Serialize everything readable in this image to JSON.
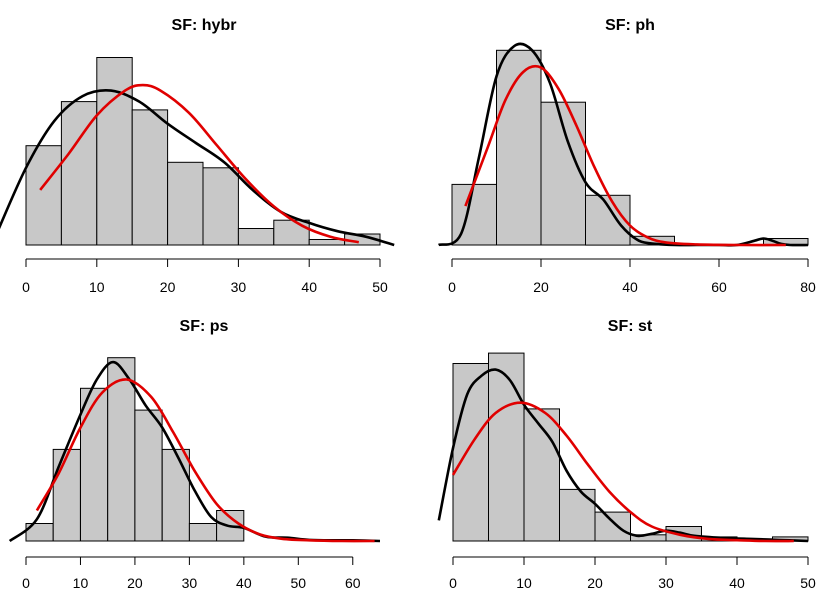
{
  "colors": {
    "bar_fill": "#c8c8c8",
    "bar_stroke": "#000000",
    "density_curve": "#000000",
    "normal_curve": "#e00000"
  },
  "chart_data": [
    {
      "type": "bar",
      "subtype": "histogram",
      "title": "SF: hybr",
      "bin_width": 5,
      "bin_edges": [
        0,
        5,
        10,
        15,
        20,
        25,
        30,
        35,
        40,
        45,
        50
      ],
      "values": [
        0.36,
        0.52,
        0.68,
        0.49,
        0.3,
        0.28,
        0.06,
        0.09,
        0.02,
        0.04
      ],
      "xlim": [
        0,
        50
      ],
      "xticks": [
        0,
        10,
        20,
        30,
        40,
        50
      ],
      "xtick_labels": [
        "0",
        "10",
        "20",
        "30",
        "40",
        "50"
      ],
      "ylim": [
        0,
        0.7
      ],
      "density_curve": {
        "x": [
          -4,
          0,
          4,
          8,
          12,
          16,
          20,
          24,
          28,
          32,
          36,
          40,
          44,
          48,
          52
        ],
        "y": [
          0.05,
          0.28,
          0.45,
          0.54,
          0.56,
          0.52,
          0.44,
          0.37,
          0.3,
          0.2,
          0.12,
          0.08,
          0.05,
          0.03,
          0.0
        ]
      },
      "normal_curve": {
        "x": [
          2,
          6,
          10,
          14,
          16.5,
          19,
          23,
          27,
          31,
          35,
          39,
          43,
          47
        ],
        "y": [
          0.2,
          0.33,
          0.47,
          0.56,
          0.58,
          0.56,
          0.48,
          0.36,
          0.24,
          0.14,
          0.07,
          0.03,
          0.01
        ]
      }
    },
    {
      "type": "bar",
      "subtype": "histogram",
      "title": "SF: ph",
      "bin_width": 10,
      "bin_edges": [
        0,
        10,
        20,
        30,
        40,
        50,
        60,
        70,
        80
      ],
      "values": [
        0.28,
        0.9,
        0.66,
        0.23,
        0.04,
        0.0,
        0.0,
        0.03
      ],
      "xlim": [
        0,
        80
      ],
      "xticks": [
        0,
        20,
        40,
        60,
        80
      ],
      "xtick_labels": [
        "0",
        "20",
        "40",
        "60",
        "80"
      ],
      "ylim": [
        0,
        0.92
      ],
      "density_curve": {
        "x": [
          -3,
          2,
          6,
          10,
          14,
          18,
          22,
          26,
          30,
          34,
          38,
          42,
          46,
          50,
          55,
          60,
          64,
          68,
          70,
          72,
          74,
          76,
          80
        ],
        "y": [
          0.0,
          0.05,
          0.4,
          0.78,
          0.92,
          0.9,
          0.75,
          0.48,
          0.29,
          0.21,
          0.09,
          0.02,
          0.005,
          0.0,
          0.0,
          0.0,
          0.0,
          0.02,
          0.03,
          0.02,
          0.005,
          0.0,
          0.0
        ]
      },
      "normal_curve": {
        "x": [
          3,
          8,
          12,
          16,
          20,
          24,
          28,
          32,
          36,
          40,
          44,
          48,
          55,
          65,
          75
        ],
        "y": [
          0.18,
          0.45,
          0.67,
          0.8,
          0.82,
          0.72,
          0.55,
          0.36,
          0.2,
          0.09,
          0.035,
          0.012,
          0.003,
          0.0,
          0.0
        ]
      }
    },
    {
      "type": "bar",
      "subtype": "histogram",
      "title": "SF: ps",
      "bin_width": 5,
      "bin_edges": [
        0,
        5,
        10,
        15,
        20,
        25,
        30,
        35,
        40,
        45,
        50,
        55,
        60,
        65
      ],
      "values": [
        0.08,
        0.42,
        0.7,
        0.84,
        0.6,
        0.42,
        0.08,
        0.14,
        0.0,
        0.0,
        0.0,
        0.0,
        0.0
      ],
      "xlim": [
        0,
        65
      ],
      "xticks": [
        0,
        10,
        20,
        30,
        40,
        50,
        60
      ],
      "xtick_labels": [
        "0",
        "10",
        "20",
        "30",
        "40",
        "50",
        "60"
      ],
      "ylim": [
        0,
        0.88
      ],
      "density_curve": {
        "x": [
          -3,
          2,
          6,
          10,
          13,
          16,
          19,
          22,
          25,
          28,
          31,
          34,
          37,
          40,
          44,
          48,
          52,
          56,
          60,
          65
        ],
        "y": [
          0.0,
          0.1,
          0.34,
          0.58,
          0.74,
          0.82,
          0.74,
          0.62,
          0.52,
          0.38,
          0.23,
          0.11,
          0.07,
          0.06,
          0.02,
          0.015,
          0.005,
          0.003,
          0.003,
          0.0
        ]
      },
      "normal_curve": {
        "x": [
          2,
          6,
          10,
          14,
          18.5,
          23,
          27,
          31,
          35,
          39,
          43,
          47,
          52,
          58,
          64
        ],
        "y": [
          0.14,
          0.31,
          0.52,
          0.68,
          0.74,
          0.66,
          0.5,
          0.32,
          0.17,
          0.08,
          0.03,
          0.01,
          0.003,
          0.0,
          0.0
        ]
      }
    },
    {
      "type": "bar",
      "subtype": "histogram",
      "title": "SF: st",
      "bin_width": 5,
      "bin_edges": [
        0,
        5,
        10,
        15,
        20,
        25,
        30,
        35,
        40,
        45,
        50
      ],
      "values": [
        0.86,
        0.91,
        0.64,
        0.25,
        0.14,
        0.03,
        0.07,
        0.02,
        0.01,
        0.02
      ],
      "xlim": [
        0,
        50
      ],
      "xticks": [
        0,
        10,
        20,
        30,
        40,
        50
      ],
      "xtick_labels": [
        "0",
        "10",
        "20",
        "30",
        "40",
        "50"
      ],
      "ylim": [
        0,
        0.93
      ],
      "density_curve": {
        "x": [
          -2,
          0,
          2,
          4,
          6,
          8,
          10,
          12,
          14,
          16,
          18,
          20,
          22,
          24,
          26,
          28,
          30,
          32,
          34,
          38,
          42,
          46,
          50
        ],
        "y": [
          0.1,
          0.45,
          0.71,
          0.8,
          0.83,
          0.78,
          0.66,
          0.57,
          0.48,
          0.34,
          0.24,
          0.18,
          0.11,
          0.05,
          0.025,
          0.035,
          0.05,
          0.04,
          0.025,
          0.015,
          0.01,
          0.005,
          0.0
        ]
      },
      "normal_curve": {
        "x": [
          0,
          3,
          6,
          9.5,
          13,
          16,
          19,
          22,
          25,
          28,
          32,
          36,
          40,
          44,
          48
        ],
        "y": [
          0.32,
          0.49,
          0.62,
          0.67,
          0.62,
          0.51,
          0.37,
          0.24,
          0.14,
          0.07,
          0.03,
          0.01,
          0.004,
          0.0,
          0.0
        ]
      }
    }
  ]
}
